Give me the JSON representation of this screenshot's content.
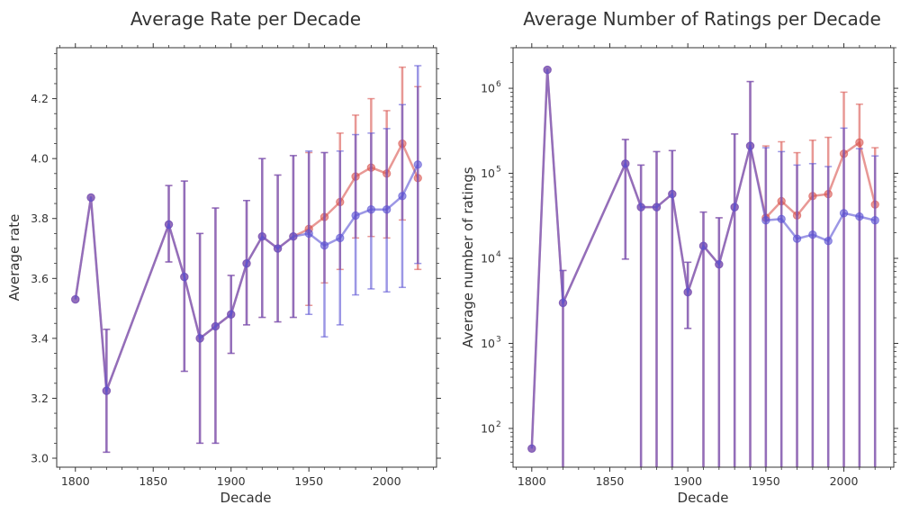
{
  "chart_data": [
    {
      "type": "line",
      "title": "Average Rate per Decade",
      "xlabel": "Decade",
      "ylabel": "Average rate",
      "xlim": [
        1788,
        2032
      ],
      "ylim": [
        2.97,
        4.37
      ],
      "xticks": [
        1800,
        1850,
        1900,
        1950,
        2000
      ],
      "yticks": [
        3.0,
        3.2,
        3.4,
        3.6,
        3.8,
        4.0,
        4.2
      ],
      "ytick_labels": [
        "3.0",
        "3.2",
        "3.4",
        "3.6",
        "3.8",
        "4.0",
        "4.2"
      ],
      "log_scale": false,
      "grid": false,
      "series": [
        {
          "color": "#d9534f",
          "x": [
            1800,
            1810,
            1820,
            1860,
            1870,
            1880,
            1890,
            1900,
            1910,
            1920,
            1930,
            1940,
            1950,
            1960,
            1970,
            1980,
            1990,
            2000,
            2010,
            2020
          ],
          "y": [
            3.53,
            3.87,
            3.225,
            3.78,
            3.605,
            3.4,
            3.44,
            3.48,
            3.65,
            3.74,
            3.7,
            3.74,
            3.765,
            3.805,
            3.855,
            3.94,
            3.97,
            3.95,
            4.05,
            3.935
          ],
          "err_low": [
            null,
            null,
            3.02,
            3.655,
            3.29,
            3.05,
            3.05,
            3.35,
            3.445,
            3.47,
            3.455,
            3.47,
            3.51,
            3.585,
            3.63,
            3.735,
            3.74,
            3.735,
            3.795,
            3.63
          ],
          "err_high": [
            null,
            null,
            3.43,
            3.91,
            3.925,
            3.75,
            3.835,
            3.61,
            3.86,
            4.0,
            3.945,
            4.01,
            4.02,
            4.02,
            4.085,
            4.145,
            4.2,
            4.16,
            4.305,
            4.24
          ]
        },
        {
          "color": "#5a52d4",
          "x": [
            1800,
            1810,
            1820,
            1860,
            1870,
            1880,
            1890,
            1900,
            1910,
            1920,
            1930,
            1940,
            1950,
            1960,
            1970,
            1980,
            1990,
            2000,
            2010,
            2020
          ],
          "y": [
            3.53,
            3.87,
            3.225,
            3.78,
            3.605,
            3.4,
            3.44,
            3.48,
            3.65,
            3.74,
            3.7,
            3.74,
            3.75,
            3.71,
            3.735,
            3.81,
            3.83,
            3.83,
            3.875,
            3.98
          ],
          "err_low": [
            null,
            null,
            3.02,
            3.655,
            3.29,
            3.05,
            3.05,
            3.35,
            3.445,
            3.47,
            3.455,
            3.47,
            3.48,
            3.405,
            3.445,
            3.545,
            3.565,
            3.555,
            3.57,
            3.65
          ],
          "err_high": [
            null,
            null,
            3.43,
            3.91,
            3.925,
            3.75,
            3.835,
            3.61,
            3.86,
            4.0,
            3.945,
            4.01,
            4.025,
            4.02,
            4.025,
            4.08,
            4.085,
            4.1,
            4.18,
            4.31
          ]
        }
      ]
    },
    {
      "type": "line",
      "title": "Average Number of Ratings per Decade",
      "xlabel": "Decade",
      "ylabel": "Average number of ratings",
      "xlim": [
        1788,
        2032
      ],
      "ylim": [
        35,
        3000000
      ],
      "xticks": [
        1800,
        1850,
        1900,
        1950,
        2000
      ],
      "yticks": [
        100,
        1000,
        10000,
        100000,
        1000000
      ],
      "ytick_labels": [
        {
          "base": "10",
          "exp": "2"
        },
        {
          "base": "10",
          "exp": "3"
        },
        {
          "base": "10",
          "exp": "4"
        },
        {
          "base": "10",
          "exp": "5"
        },
        {
          "base": "10",
          "exp": "6"
        }
      ],
      "log_scale": true,
      "grid": false,
      "series": [
        {
          "color": "#d9534f",
          "x": [
            1800,
            1810,
            1820,
            1860,
            1870,
            1880,
            1890,
            1900,
            1910,
            1920,
            1930,
            1940,
            1950,
            1960,
            1970,
            1980,
            1990,
            2000,
            2010,
            2020
          ],
          "y": [
            58,
            1650000,
            3000,
            130000,
            40000,
            40000,
            57000,
            4000,
            14000,
            8500,
            40000,
            210000,
            30000,
            47000,
            32000,
            54000,
            57000,
            170000,
            230000,
            43000
          ],
          "err_low": [
            null,
            null,
            20,
            9800,
            20,
            20,
            20,
            1500,
            20,
            20,
            20,
            20,
            20,
            20,
            20,
            20,
            20,
            20,
            20,
            20
          ],
          "err_high": [
            null,
            null,
            7200,
            250000,
            125000,
            180000,
            185000,
            9000,
            35000,
            30000,
            290000,
            1200000,
            210000,
            235000,
            175000,
            245000,
            265000,
            900000,
            650000,
            200000
          ]
        },
        {
          "color": "#5a52d4",
          "x": [
            1800,
            1810,
            1820,
            1860,
            1870,
            1880,
            1890,
            1900,
            1910,
            1920,
            1930,
            1940,
            1950,
            1960,
            1970,
            1980,
            1990,
            2000,
            2010,
            2020
          ],
          "y": [
            58,
            1650000,
            3000,
            130000,
            40000,
            40000,
            57000,
            4000,
            14000,
            8500,
            40000,
            210000,
            28000,
            29000,
            17000,
            19000,
            16000,
            34000,
            31000,
            28000
          ],
          "err_low": [
            null,
            null,
            20,
            9800,
            20,
            20,
            20,
            1500,
            20,
            20,
            20,
            20,
            20,
            20,
            20,
            20,
            20,
            20,
            20,
            20
          ],
          "err_high": [
            null,
            null,
            7200,
            250000,
            125000,
            180000,
            185000,
            9000,
            35000,
            30000,
            290000,
            1200000,
            200000,
            180000,
            125000,
            130000,
            120000,
            340000,
            195000,
            160000
          ]
        }
      ]
    }
  ]
}
